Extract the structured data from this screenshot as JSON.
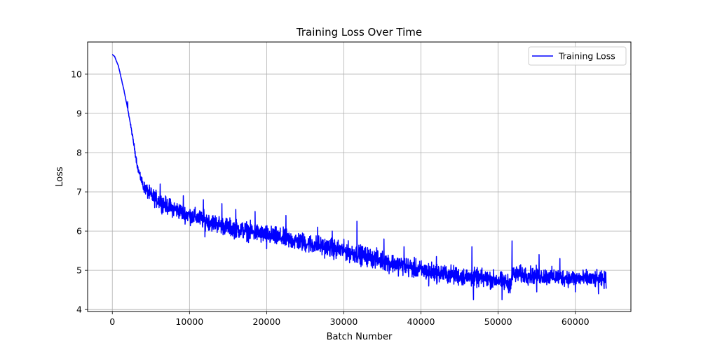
{
  "chart_data": {
    "type": "line",
    "title": "Training Loss Over Time",
    "xlabel": "Batch Number",
    "ylabel": "Loss",
    "xlim": [
      -3200,
      67200
    ],
    "ylim": [
      3.95,
      10.82
    ],
    "x_ticks": [
      0,
      10000,
      20000,
      30000,
      40000,
      50000,
      60000
    ],
    "y_ticks": [
      4,
      5,
      6,
      7,
      8,
      9,
      10
    ],
    "grid": true,
    "legend_position": "top-right",
    "series": [
      {
        "name": "Training Loss",
        "color": "#0000ff",
        "x_range": [
          0,
          64000
        ],
        "trend": [
          [
            0,
            10.5
          ],
          [
            300,
            10.45
          ],
          [
            800,
            10.2
          ],
          [
            1500,
            9.6
          ],
          [
            2200,
            8.9
          ],
          [
            2800,
            8.2
          ],
          [
            3300,
            7.6
          ],
          [
            4000,
            7.15
          ],
          [
            5000,
            6.9
          ],
          [
            7000,
            6.65
          ],
          [
            10000,
            6.4
          ],
          [
            15000,
            6.1
          ],
          [
            20000,
            5.9
          ],
          [
            25000,
            5.7
          ],
          [
            30000,
            5.5
          ],
          [
            35000,
            5.25
          ],
          [
            40000,
            5.0
          ],
          [
            45000,
            4.85
          ],
          [
            50000,
            4.75
          ],
          [
            51500,
            4.65
          ],
          [
            52000,
            4.9
          ],
          [
            56000,
            4.85
          ],
          [
            60000,
            4.8
          ],
          [
            64000,
            4.75
          ]
        ],
        "noise_amplitude": [
          [
            0,
            0.01
          ],
          [
            2000,
            0.03
          ],
          [
            3500,
            0.15
          ],
          [
            5000,
            0.3
          ],
          [
            20000,
            0.35
          ],
          [
            40000,
            0.35
          ],
          [
            64000,
            0.3
          ]
        ],
        "spikes": [
          [
            2000,
            9.3
          ],
          [
            3600,
            7.5
          ],
          [
            6200,
            7.2
          ],
          [
            9200,
            6.9
          ],
          [
            11800,
            6.8
          ],
          [
            14200,
            6.7
          ],
          [
            16000,
            6.55
          ],
          [
            18500,
            6.5
          ],
          [
            22500,
            6.4
          ],
          [
            26600,
            6.1
          ],
          [
            28500,
            6.0
          ],
          [
            31700,
            6.25
          ],
          [
            35200,
            5.8
          ],
          [
            37800,
            5.6
          ],
          [
            42000,
            5.35
          ],
          [
            46600,
            5.6
          ],
          [
            51800,
            5.75
          ],
          [
            55300,
            5.4
          ],
          [
            58000,
            5.3
          ],
          [
            12000,
            5.85
          ],
          [
            20000,
            5.55
          ],
          [
            29000,
            5.3
          ],
          [
            36000,
            5.0
          ],
          [
            41000,
            4.6
          ],
          [
            46800,
            4.25
          ],
          [
            50500,
            4.25
          ],
          [
            55000,
            4.45
          ],
          [
            60000,
            4.45
          ],
          [
            63000,
            4.4
          ]
        ]
      }
    ]
  }
}
